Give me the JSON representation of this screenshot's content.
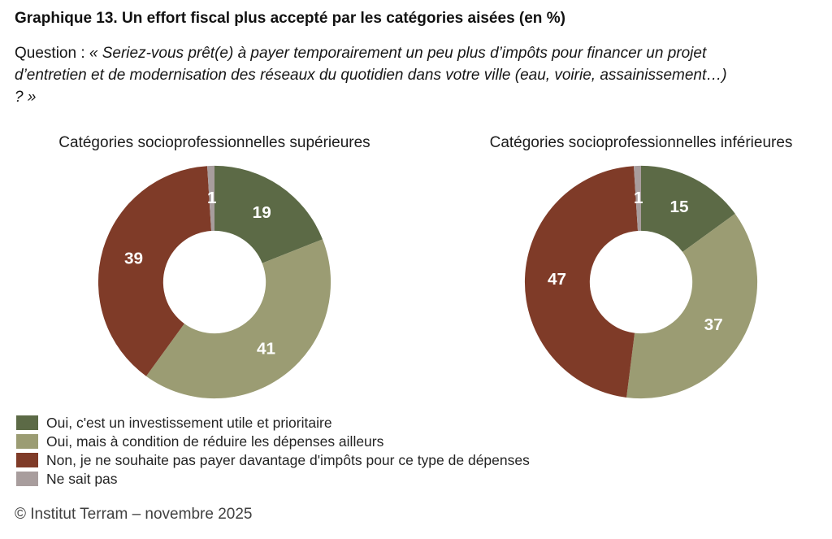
{
  "header": {
    "title_prefix": "Graphique 13.",
    "title_rest": " Un effort fiscal plus accepté par les catégories aisées (en %)",
    "question_label": "Question : ",
    "question_text": "« Seriez-vous prêt(e) à payer temporairement un peu plus d’impôts pour financer un projet d’entretien et de modernisation des réseaux du quotidien dans votre ville (eau, voirie, assainissement…) ? »"
  },
  "chart_data": [
    {
      "type": "pie",
      "subtype": "donut",
      "title": "Catégories socioprofessionnelles supérieures",
      "unit": "%",
      "direction": "clockwise",
      "start_angle_deg": 0,
      "categories": [
        "Oui, c'est un investissement utile et prioritaire",
        "Oui, mais à condition de réduire les dépenses ailleurs",
        "Non, je ne souhaite pas payer davantage d'impôts pour ce type de dépenses",
        "Ne sait pas"
      ],
      "values": [
        19,
        41,
        39,
        1
      ],
      "colors": [
        "#5C6A46",
        "#9B9C73",
        "#7F3B28",
        "#A89D9D"
      ]
    },
    {
      "type": "pie",
      "subtype": "donut",
      "title": "Catégories socioprofessionnelles inférieures",
      "unit": "%",
      "direction": "clockwise",
      "start_angle_deg": 0,
      "categories": [
        "Oui, c'est un investissement utile et prioritaire",
        "Oui, mais à condition de réduire les dépenses ailleurs",
        "Non, je ne souhaite pas payer davantage d'impôts pour ce type de dépenses",
        "Ne sait pas"
      ],
      "values": [
        15,
        37,
        47,
        1
      ],
      "colors": [
        "#5C6A46",
        "#9B9C73",
        "#7F3B28",
        "#A89D9D"
      ]
    }
  ],
  "legend": {
    "items": [
      {
        "label": "Oui, c'est un investissement utile et prioritaire",
        "color": "#5C6A46"
      },
      {
        "label": "Oui, mais à condition de réduire les dépenses ailleurs",
        "color": "#9B9C73"
      },
      {
        "label": "Non, je ne souhaite pas payer davantage d'impôts pour ce type de dépenses",
        "color": "#7F3B28"
      },
      {
        "label": "Ne sait pas",
        "color": "#A89D9D"
      }
    ]
  },
  "footer": {
    "credit": "© Institut Terram – novembre 2025"
  }
}
